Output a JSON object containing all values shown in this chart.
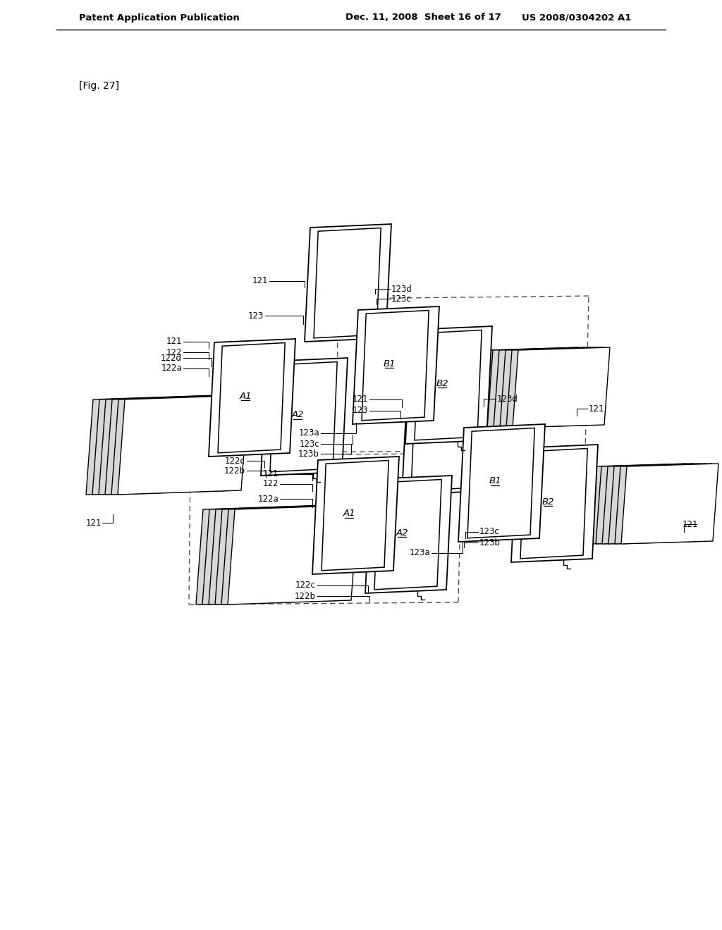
{
  "bg_color": "#ffffff",
  "header_left": "Patent Application Publication",
  "header_mid": "Dec. 11, 2008  Sheet 16 of 17",
  "header_right": "US 2008/0304202 A1",
  "fig_label": "[Fig. 27]",
  "text_color": "#000000",
  "line_color": "#000000"
}
